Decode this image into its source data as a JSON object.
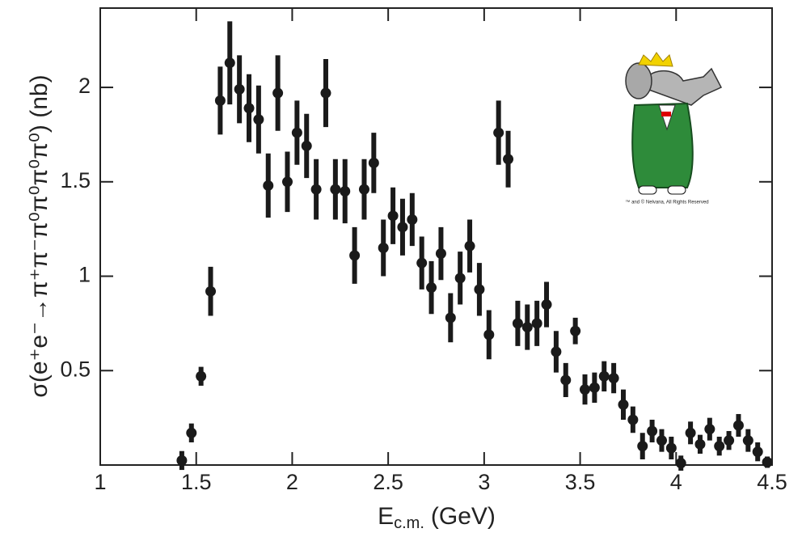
{
  "chart_data": {
    "type": "scatter",
    "y_label": "σ(e⁺e⁻→π⁺π⁻π⁰π⁰π⁰π⁰) (nb)",
    "x_label": [
      "E",
      "c.m.",
      "(GeV)"
    ],
    "logo_caption": "™ and © Nelvana, All Rights Reserved",
    "color": "#1a1a1a",
    "xlim": [
      1,
      4.5
    ],
    "xticks": [
      1,
      1.5,
      2,
      2.5,
      3,
      3.5,
      4,
      4.5
    ],
    "ylim": [
      0,
      2.42
    ],
    "yticks": [
      0.5,
      1,
      1.5,
      2
    ],
    "x": [
      1.425,
      1.475,
      1.525,
      1.575,
      1.625,
      1.675,
      1.725,
      1.775,
      1.825,
      1.875,
      1.925,
      1.975,
      2.025,
      2.075,
      2.125,
      2.175,
      2.225,
      2.275,
      2.325,
      2.375,
      2.425,
      2.475,
      2.525,
      2.575,
      2.625,
      2.675,
      2.725,
      2.775,
      2.825,
      2.875,
      2.925,
      2.975,
      3.025,
      3.075,
      3.125,
      3.175,
      3.225,
      3.275,
      3.325,
      3.375,
      3.425,
      3.475,
      3.525,
      3.575,
      3.625,
      3.675,
      3.725,
      3.775,
      3.825,
      3.875,
      3.925,
      3.975,
      4.025,
      4.075,
      4.125,
      4.175,
      4.225,
      4.275,
      4.325,
      4.375,
      4.425,
      4.475
    ],
    "values": [
      0.024,
      0.17,
      0.47,
      0.92,
      1.93,
      2.13,
      1.99,
      1.89,
      1.83,
      1.48,
      1.97,
      1.5,
      1.76,
      1.69,
      1.46,
      1.97,
      1.46,
      1.45,
      1.11,
      1.46,
      1.6,
      1.15,
      1.32,
      1.26,
      1.3,
      1.07,
      0.94,
      1.12,
      0.78,
      0.99,
      1.16,
      0.93,
      0.69,
      1.76,
      1.62,
      0.75,
      0.73,
      0.75,
      0.85,
      0.6,
      0.45,
      0.71,
      0.4,
      0.41,
      0.47,
      0.46,
      0.32,
      0.24,
      0.1,
      0.18,
      0.13,
      0.09,
      0.01,
      0.17,
      0.11,
      0.19,
      0.1,
      0.13,
      0.21,
      0.13,
      0.07,
      0.015
    ],
    "errors": [
      0.05,
      0.05,
      0.05,
      0.13,
      0.18,
      0.22,
      0.18,
      0.18,
      0.18,
      0.17,
      0.2,
      0.16,
      0.17,
      0.17,
      0.16,
      0.18,
      0.16,
      0.17,
      0.15,
      0.16,
      0.16,
      0.15,
      0.15,
      0.15,
      0.14,
      0.14,
      0.14,
      0.14,
      0.13,
      0.14,
      0.14,
      0.14,
      0.13,
      0.17,
      0.15,
      0.12,
      0.12,
      0.12,
      0.12,
      0.11,
      0.09,
      0.07,
      0.08,
      0.08,
      0.08,
      0.08,
      0.08,
      0.07,
      0.07,
      0.06,
      0.06,
      0.06,
      0.04,
      0.06,
      0.05,
      0.06,
      0.05,
      0.05,
      0.06,
      0.06,
      0.05,
      0.03
    ]
  }
}
